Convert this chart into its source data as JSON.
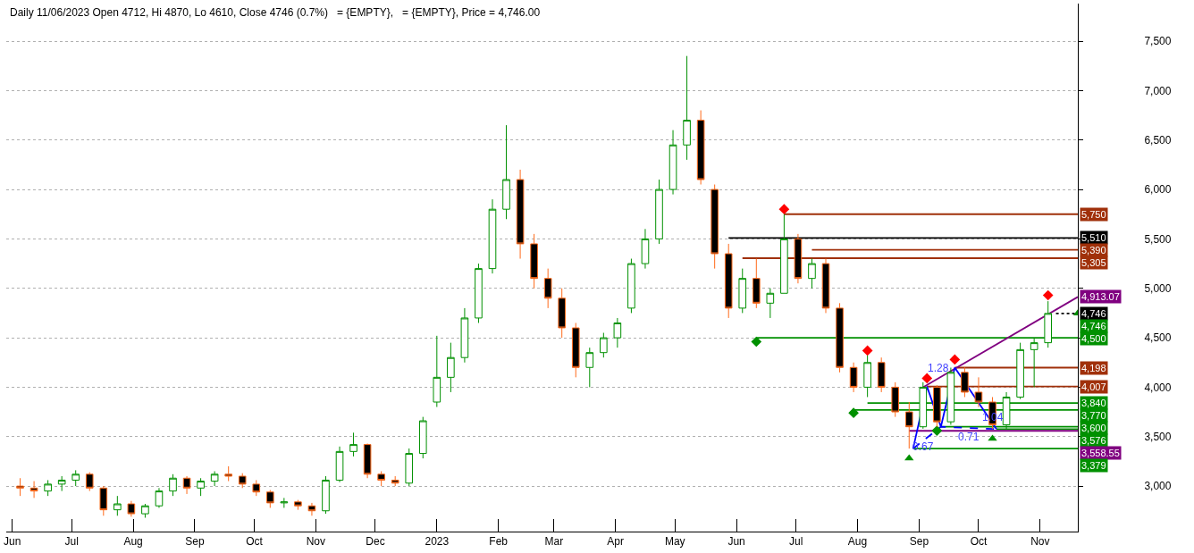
{
  "chart_data": {
    "type": "candlestick",
    "title": "Daily 11/06/2023 Open 4712, Hi 4870, Lo 4610, Close 4746 (0.7%)   = {EMPTY},   = {EMPTY}, Price = 4,746.00",
    "x": [
      "2022-06-05",
      "2022-06-12",
      "2022-06-19",
      "2022-06-26",
      "2022-07-03",
      "2022-07-10",
      "2022-07-17",
      "2022-07-24",
      "2022-07-31",
      "2022-08-07",
      "2022-08-14",
      "2022-08-21",
      "2022-08-28",
      "2022-09-04",
      "2022-09-11",
      "2022-09-18",
      "2022-09-25",
      "2022-10-02",
      "2022-10-09",
      "2022-10-16",
      "2022-10-23",
      "2022-10-30",
      "2022-11-06",
      "2022-11-13",
      "2022-11-20",
      "2022-11-27",
      "2022-12-04",
      "2022-12-11",
      "2022-12-18",
      "2022-12-25",
      "2023-01-01",
      "2023-01-08",
      "2023-01-15",
      "2023-01-22",
      "2023-01-29",
      "2023-02-05",
      "2023-02-12",
      "2023-02-19",
      "2023-02-26",
      "2023-03-05",
      "2023-03-12",
      "2023-03-19",
      "2023-03-26",
      "2023-04-02",
      "2023-04-09",
      "2023-04-16",
      "2023-04-23",
      "2023-04-30",
      "2023-05-07",
      "2023-05-14",
      "2023-05-21",
      "2023-05-28",
      "2023-06-04",
      "2023-06-11",
      "2023-06-18",
      "2023-06-25",
      "2023-07-02",
      "2023-07-09",
      "2023-07-16",
      "2023-07-23",
      "2023-07-30",
      "2023-08-06",
      "2023-08-13",
      "2023-08-20",
      "2023-08-27",
      "2023-09-03",
      "2023-09-10",
      "2023-09-17",
      "2023-09-24",
      "2023-10-01",
      "2023-10-08",
      "2023-10-15",
      "2023-10-22",
      "2023-10-29",
      "2023-11-05"
    ],
    "ohlc": [
      [
        3000,
        3080,
        2900,
        2980
      ],
      [
        2980,
        3050,
        2880,
        2950
      ],
      [
        2950,
        3060,
        2900,
        3020
      ],
      [
        3020,
        3100,
        2950,
        3060
      ],
      [
        3060,
        3160,
        3000,
        3120
      ],
      [
        3120,
        3140,
        2950,
        2980
      ],
      [
        2980,
        3000,
        2700,
        2760
      ],
      [
        2760,
        2900,
        2700,
        2820
      ],
      [
        2820,
        2850,
        2690,
        2720
      ],
      [
        2720,
        2820,
        2680,
        2800
      ],
      [
        2800,
        2980,
        2780,
        2950
      ],
      [
        2950,
        3120,
        2900,
        3080
      ],
      [
        3080,
        3100,
        2920,
        2980
      ],
      [
        2980,
        3080,
        2900,
        3050
      ],
      [
        3050,
        3150,
        3000,
        3120
      ],
      [
        3120,
        3200,
        3050,
        3100
      ],
      [
        3100,
        3130,
        2980,
        3020
      ],
      [
        3020,
        3060,
        2900,
        2940
      ],
      [
        2940,
        2960,
        2780,
        2830
      ],
      [
        2830,
        2880,
        2780,
        2840
      ],
      [
        2840,
        2860,
        2760,
        2800
      ],
      [
        2800,
        2830,
        2700,
        2750
      ],
      [
        2750,
        3100,
        2720,
        3060
      ],
      [
        3060,
        3400,
        3040,
        3350
      ],
      [
        3350,
        3540,
        3300,
        3420
      ],
      [
        3420,
        3430,
        3080,
        3120
      ],
      [
        3120,
        3150,
        3000,
        3060
      ],
      [
        3060,
        3100,
        3000,
        3030
      ],
      [
        3030,
        3380,
        3000,
        3330
      ],
      [
        3330,
        3700,
        3280,
        3660
      ],
      [
        3850,
        4520,
        3800,
        4100
      ],
      [
        4100,
        4450,
        3950,
        4300
      ],
      [
        4300,
        4800,
        4250,
        4700
      ],
      [
        4700,
        5250,
        4650,
        5200
      ],
      [
        5200,
        5900,
        5150,
        5800
      ],
      [
        5800,
        6650,
        5700,
        6100
      ],
      [
        6100,
        6200,
        5300,
        5450
      ],
      [
        5450,
        5550,
        5000,
        5100
      ],
      [
        5100,
        5200,
        4800,
        4900
      ],
      [
        4900,
        5000,
        4500,
        4600
      ],
      [
        4600,
        4650,
        4100,
        4200
      ],
      [
        4200,
        4400,
        4000,
        4350
      ],
      [
        4350,
        4550,
        4300,
        4500
      ],
      [
        4500,
        4700,
        4400,
        4650
      ],
      [
        4800,
        5300,
        4750,
        5250
      ],
      [
        5250,
        5600,
        5200,
        5500
      ],
      [
        5500,
        6100,
        5450,
        6000
      ],
      [
        6000,
        6600,
        5950,
        6450
      ],
      [
        6450,
        7350,
        6300,
        6700
      ],
      [
        6700,
        6800,
        6050,
        6100
      ],
      [
        6000,
        6050,
        5200,
        5350
      ],
      [
        5350,
        5450,
        4700,
        4800
      ],
      [
        4800,
        5200,
        4750,
        5100
      ],
      [
        5100,
        5300,
        4800,
        4850
      ],
      [
        4850,
        5000,
        4700,
        4950
      ],
      [
        4950,
        5750,
        4950,
        5500
      ],
      [
        5500,
        5550,
        5050,
        5100
      ],
      [
        5100,
        5300,
        5000,
        5250
      ],
      [
        5250,
        5300,
        4750,
        4800
      ],
      [
        4800,
        4850,
        4150,
        4200
      ],
      [
        4200,
        4250,
        3950,
        4000
      ],
      [
        4000,
        4320,
        3900,
        4250
      ],
      [
        4250,
        4300,
        3950,
        4000
      ],
      [
        4000,
        4050,
        3700,
        3750
      ],
      [
        3750,
        3850,
        3379,
        3600
      ],
      [
        3600,
        4050,
        3580,
        4000
      ],
      [
        4000,
        4020,
        3600,
        3650
      ],
      [
        3650,
        4198,
        3620,
        4150
      ],
      [
        4150,
        4200,
        3900,
        3950
      ],
      [
        3950,
        4100,
        3800,
        3850
      ],
      [
        3850,
        3900,
        3576,
        3620
      ],
      [
        3620,
        3950,
        3576,
        3900
      ],
      [
        3900,
        4450,
        3880,
        4380
      ],
      [
        4380,
        4500,
        4000,
        4450
      ],
      [
        4450,
        4870,
        4400,
        4746
      ]
    ],
    "series": [
      {
        "type": "line",
        "color": "#000000",
        "x": [
          "2023-05-28",
          "2023-11-20"
        ],
        "values": [
          5510,
          5510
        ],
        "value_labels": [
          null,
          "5,510"
        ]
      },
      {
        "type": "line",
        "color": "#a0300a",
        "x": [
          "2023-06-25",
          "2023-11-20"
        ],
        "values": [
          5750,
          5750
        ],
        "value_labels": [
          null,
          "5,750"
        ]
      },
      {
        "type": "line",
        "color": "#a0300a",
        "x": [
          "2023-07-09",
          "2023-11-20"
        ],
        "values": [
          5390,
          5390
        ],
        "value_labels": [
          null,
          "5,390"
        ]
      },
      {
        "type": "line",
        "color": "#a0300a",
        "x": [
          "2023-06-04",
          "2023-11-20"
        ],
        "values": [
          5305,
          5305
        ],
        "value_labels": [
          null,
          "5,305"
        ]
      },
      {
        "type": "line",
        "color": "#009000",
        "x": [
          "2023-06-11",
          "2023-11-20"
        ],
        "values": [
          4500,
          4500
        ],
        "value_labels": [
          null,
          "4,500"
        ]
      },
      {
        "type": "line",
        "color": "#a0300a",
        "x": [
          "2023-09-19",
          "2023-11-20"
        ],
        "values": [
          4198,
          4198
        ],
        "value_labels": [
          null,
          "4,198"
        ]
      },
      {
        "type": "line",
        "color": "#a0300a",
        "x": [
          "2023-09-05",
          "2023-11-20"
        ],
        "values": [
          4007,
          4007
        ],
        "value_labels": [
          null,
          "4,007"
        ]
      },
      {
        "type": "line",
        "color": "#009000",
        "x": [
          "2023-08-06",
          "2023-11-20"
        ],
        "values": [
          3840,
          3840
        ],
        "value_labels": [
          null,
          "3,840"
        ]
      },
      {
        "type": "line",
        "color": "#009000",
        "x": [
          "2023-07-30",
          "2023-11-20"
        ],
        "values": [
          3770,
          3770
        ],
        "value_labels": [
          null,
          "3,770"
        ]
      },
      {
        "type": "line",
        "color": "#009000",
        "x": [
          "2023-09-12",
          "2023-11-20"
        ],
        "values": [
          3600,
          3600
        ],
        "value_labels": [
          null,
          "3,600"
        ]
      },
      {
        "type": "line",
        "color": "#009000",
        "x": [
          "2023-10-10",
          "2023-11-20"
        ],
        "values": [
          3576,
          3576
        ],
        "value_labels": [
          null,
          "3,576"
        ]
      },
      {
        "type": "line",
        "color": "#800080",
        "x": [
          "2023-08-27",
          "2023-11-20"
        ],
        "values": [
          3558.55,
          3558.55
        ],
        "value_labels": [
          null,
          "3,558.55"
        ]
      },
      {
        "type": "line",
        "color": "#009000",
        "x": [
          "2023-08-29",
          "2023-11-20"
        ],
        "values": [
          3379,
          3379
        ],
        "value_labels": [
          null,
          "3,379"
        ]
      },
      {
        "type": "line",
        "color": "#800080",
        "x": [
          "2023-09-03",
          "2023-11-20"
        ],
        "values": [
          4000,
          4913.07
        ],
        "value_labels": [
          null,
          "4,913.07"
        ]
      },
      {
        "type": "line",
        "color": "#0000ff",
        "x": [
          "2023-08-29",
          "2023-09-05",
          "2023-09-12",
          "2023-09-19",
          "2023-10-10"
        ],
        "values": [
          3379,
          4007,
          3600,
          4198,
          3576
        ]
      },
      {
        "type": "line",
        "color": "#0000ff",
        "line_style": "dashed",
        "x": [
          "2023-08-29",
          "2023-09-12",
          "2023-10-10"
        ],
        "values": [
          3379,
          3600,
          3576
        ]
      },
      {
        "type": "line",
        "color": "#000000",
        "line_style": "dotted",
        "x": [
          "2023-11-09",
          "2023-11-20"
        ],
        "values": [
          4746,
          4746
        ],
        "value_labels": [
          null,
          "4,746"
        ]
      },
      {
        "type": "scatter",
        "color": "#009000",
        "marker": "triangle",
        "x": [
          "2023-11-20"
        ],
        "values": [
          4746
        ],
        "value_labels": [
          "4,746"
        ]
      },
      {
        "type": "scatter",
        "color": "#ff0000",
        "marker": "diamond",
        "x": [
          "2023-06-25",
          "2023-08-06",
          "2023-09-05",
          "2023-09-19",
          "2023-11-05"
        ],
        "values": [
          5800,
          4370,
          4090,
          4280,
          4930
        ]
      },
      {
        "type": "scatter",
        "color": "#009000",
        "marker": "diamond",
        "x": [
          "2023-06-11",
          "2023-07-30",
          "2023-09-10"
        ],
        "values": [
          4460,
          3740,
          3560
        ]
      },
      {
        "type": "scatter",
        "color": "#009000",
        "marker": "triangle",
        "x": [
          "2023-08-27",
          "2023-10-08"
        ],
        "values": [
          3280,
          3480
        ]
      }
    ],
    "annotations": [
      {
        "text": "1.28",
        "x": "2023-09-19",
        "y": 4198
      },
      {
        "text": "0.67",
        "x": "2023-09-03",
        "y": 3490
      },
      {
        "text": "0.71",
        "x": "2023-09-26",
        "y": 3588
      },
      {
        "text": "1.04",
        "x": "2023-10-03",
        "y": 3783
      }
    ],
    "xlim": [
      "2022-05-29",
      "2023-11-20"
    ],
    "xticks": [
      {
        "value": "2022-06-01",
        "label": "Jun"
      },
      {
        "value": "2022-07-01",
        "label": "Jul"
      },
      {
        "value": "2022-08-01",
        "label": "Aug"
      },
      {
        "value": "2022-09-01",
        "label": "Sep"
      },
      {
        "value": "2022-10-01",
        "label": "Oct"
      },
      {
        "value": "2022-11-01",
        "label": "Nov"
      },
      {
        "value": "2022-12-01",
        "label": "Dec"
      },
      {
        "value": "2023-01-01",
        "label": "2023"
      },
      {
        "value": "2023-02-01",
        "label": "Feb"
      },
      {
        "value": "2023-03-01",
        "label": "Mar"
      },
      {
        "value": "2023-04-01",
        "label": "Apr"
      },
      {
        "value": "2023-05-01",
        "label": "May"
      },
      {
        "value": "2023-06-01",
        "label": "Jun"
      },
      {
        "value": "2023-07-01",
        "label": "Jul"
      },
      {
        "value": "2023-08-01",
        "label": "Aug"
      },
      {
        "value": "2023-09-01",
        "label": "Sep"
      },
      {
        "value": "2023-10-01",
        "label": "Oct"
      },
      {
        "value": "2023-11-01",
        "label": "Nov"
      }
    ],
    "ylim": [
      2540,
      7880
    ],
    "yticks": [
      {
        "value": 3000,
        "label": "3,000"
      },
      {
        "value": 3500,
        "label": "3,500"
      },
      {
        "value": 4000,
        "label": "4,000"
      },
      {
        "value": 4500,
        "label": "4,500"
      },
      {
        "value": 5000,
        "label": "5,000"
      },
      {
        "value": 5500,
        "label": "5,500"
      },
      {
        "value": 6000,
        "label": "6,000"
      },
      {
        "value": 6500,
        "label": "6,500"
      },
      {
        "value": 7000,
        "label": "7,000"
      },
      {
        "value": 7500,
        "label": "7,500"
      }
    ],
    "grid": "y"
  }
}
